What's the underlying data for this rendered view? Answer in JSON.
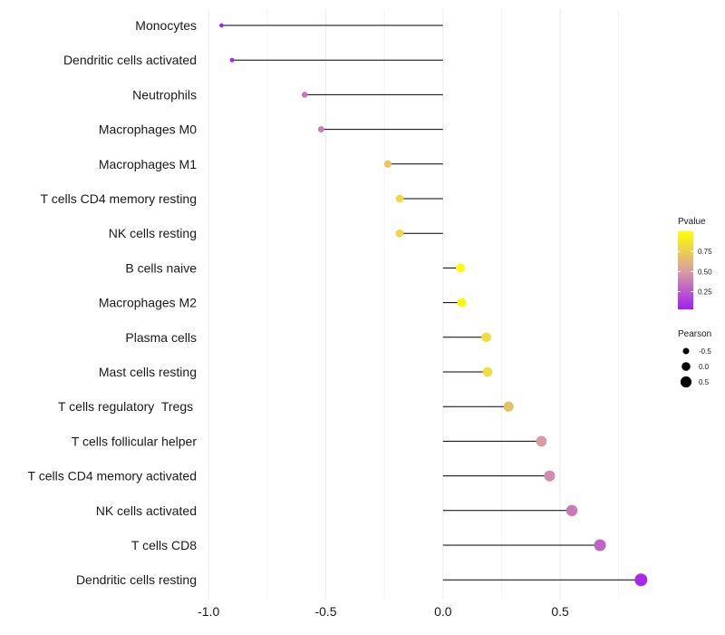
{
  "chart_data": {
    "type": "lollipop",
    "title": "",
    "xlabel": "",
    "ylabel": "",
    "xlim": [
      -1.0,
      0.85
    ],
    "x_ticks": [
      -1.0,
      -0.5,
      0.0,
      0.5
    ],
    "x_tick_labels": [
      "-1.0",
      "-0.5",
      "0.0",
      "0.5"
    ],
    "grid": true,
    "categories": [
      "Monocytes",
      "Dendritic cells activated",
      "Neutrophils",
      "Macrophages M0",
      "Macrophages M1",
      "T cells CD4 memory resting",
      "NK cells resting",
      "B cells naive",
      "Macrophages M2",
      "Plasma cells",
      "Mast cells resting",
      "T cells regulatory  Tregs ",
      "T cells follicular helper",
      "T cells CD4 memory activated",
      "NK cells activated",
      "T cells CD8",
      "Dendritic cells resting"
    ],
    "pearson": [
      -0.945,
      -0.9,
      -0.59,
      -0.52,
      -0.235,
      -0.185,
      -0.185,
      0.075,
      0.08,
      0.185,
      0.19,
      0.28,
      0.42,
      0.455,
      0.55,
      0.67,
      0.845
    ],
    "pvalue": [
      0.05,
      0.06,
      0.35,
      0.38,
      0.72,
      0.8,
      0.8,
      0.98,
      0.97,
      0.83,
      0.82,
      0.68,
      0.5,
      0.44,
      0.38,
      0.28,
      0.07
    ],
    "legend_pvalue": {
      "title": "Pvalue",
      "ticks": [
        0.75,
        0.5,
        0.25
      ],
      "tick_labels": [
        "0.75",
        "0.50",
        "0.25"
      ],
      "range": [
        0.03,
        1.0
      ],
      "color_low": "#a020f0",
      "color_mid": "#d8a0a0",
      "color_high": "#ffff00"
    },
    "legend_pearson": {
      "title": "Pearson",
      "values": [
        -0.5,
        0.0,
        0.5
      ],
      "labels": [
        "-0.5",
        "0.0",
        "0.5"
      ]
    }
  }
}
